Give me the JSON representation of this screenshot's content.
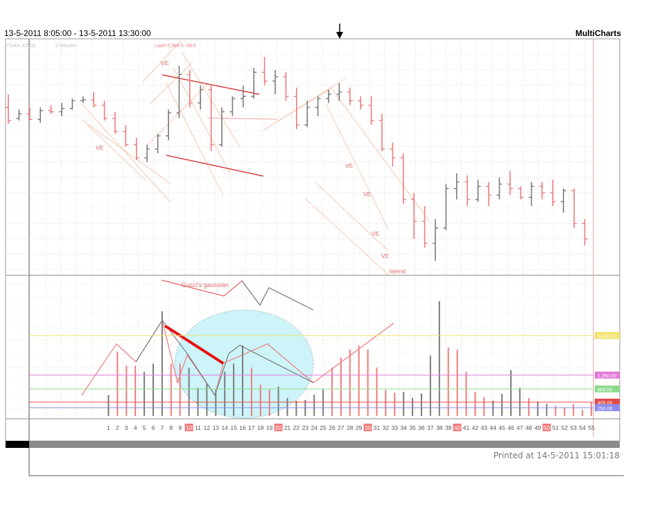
{
  "header": {
    "date_range": "13-5-2011 8:05:00 - 13-5-2011 13:30:00",
    "brand": "MultiCharts"
  },
  "footer": {
    "printed": "Printed at 14-5-2011 15:01:18"
  },
  "colors": {
    "bull": "#7a7a7a",
    "bear": "#ef7a7a",
    "grid": "#d9d9d9",
    "bubble": "#ccf4f9",
    "accent_red": "#e81010"
  },
  "chart_data": [
    {
      "type": "line",
      "title": "",
      "symbol_label": "FDAX JUN11",
      "interval_label": "5 Minutes",
      "last_label": "Last=7,384.5 -58.0",
      "series": [
        {
          "values_open_high_low_close": [
            [
              7420,
              7432,
              7405,
              7408
            ],
            [
              7410,
              7418,
              7408,
              7414
            ],
            [
              7414,
              7420,
              7408,
              7409
            ],
            [
              7409,
              7420,
              7406,
              7417
            ],
            [
              7417,
              7422,
              7414,
              7416
            ],
            [
              7416,
              7424,
              7412,
              7419
            ],
            [
              7419,
              7428,
              7418,
              7426
            ],
            [
              7426,
              7430,
              7424,
              7427
            ],
            [
              7427,
              7434,
              7420,
              7422
            ],
            [
              7422,
              7426,
              7408,
              7410
            ],
            [
              7410,
              7416,
              7396,
              7398
            ],
            [
              7398,
              7404,
              7384,
              7386
            ],
            [
              7386,
              7392,
              7372,
              7374
            ],
            [
              7374,
              7386,
              7370,
              7382
            ],
            [
              7382,
              7396,
              7378,
              7394
            ],
            [
              7394,
              7418,
              7390,
              7415
            ],
            [
              7415,
              7458,
              7410,
              7450
            ],
            [
              7450,
              7454,
              7420,
              7424
            ],
            [
              7424,
              7440,
              7418,
              7436
            ],
            [
              7436,
              7440,
              7380,
              7386
            ],
            [
              7386,
              7420,
              7384,
              7416
            ],
            [
              7416,
              7430,
              7412,
              7428
            ],
            [
              7428,
              7440,
              7420,
              7430
            ],
            [
              7430,
              7456,
              7428,
              7452
            ],
            [
              7452,
              7466,
              7440,
              7444
            ],
            [
              7444,
              7454,
              7432,
              7448
            ],
            [
              7448,
              7452,
              7426,
              7430
            ],
            [
              7430,
              7438,
              7400,
              7404
            ],
            [
              7404,
              7426,
              7402,
              7420
            ],
            [
              7420,
              7430,
              7412,
              7428
            ],
            [
              7428,
              7436,
              7424,
              7432
            ],
            [
              7432,
              7442,
              7426,
              7434
            ],
            [
              7434,
              7438,
              7422,
              7426
            ],
            [
              7426,
              7430,
              7418,
              7422
            ],
            [
              7422,
              7430,
              7404,
              7408
            ],
            [
              7408,
              7414,
              7380,
              7382
            ],
            [
              7382,
              7388,
              7366,
              7374
            ],
            [
              7374,
              7378,
              7332,
              7336
            ],
            [
              7336,
              7342,
              7300,
              7316
            ],
            [
              7316,
              7330,
              7292,
              7296
            ],
            [
              7296,
              7318,
              7280,
              7310
            ],
            [
              7310,
              7350,
              7308,
              7346
            ],
            [
              7346,
              7360,
              7336,
              7352
            ],
            [
              7352,
              7358,
              7330,
              7336
            ],
            [
              7336,
              7354,
              7334,
              7348
            ],
            [
              7348,
              7352,
              7330,
              7340
            ],
            [
              7340,
              7356,
              7336,
              7350
            ],
            [
              7350,
              7362,
              7340,
              7346
            ],
            [
              7346,
              7348,
              7336,
              7338
            ],
            [
              7338,
              7352,
              7330,
              7348
            ],
            [
              7348,
              7352,
              7336,
              7342
            ],
            [
              7342,
              7354,
              7330,
              7334
            ],
            [
              7334,
              7346,
              7324,
              7344
            ],
            [
              7344,
              7346,
              7310,
              7314
            ],
            [
              7314,
              7318,
              7294,
              7300
            ]
          ]
        }
      ],
      "annotations": [
        "VE",
        "VE",
        "VE",
        "VE",
        "VE",
        "VE",
        "lateral"
      ]
    },
    {
      "type": "bar",
      "title": "",
      "x": [
        1,
        2,
        3,
        4,
        5,
        6,
        7,
        8,
        9,
        10,
        11,
        12,
        13,
        14,
        15,
        16,
        17,
        18,
        19,
        20,
        21,
        22,
        23,
        24,
        25,
        26,
        27,
        28,
        29,
        30,
        31,
        32,
        33,
        34,
        35,
        36,
        37,
        38,
        39,
        40,
        41,
        42,
        43,
        44,
        45,
        46,
        47,
        48,
        49,
        50,
        51,
        52,
        53,
        54,
        55
      ],
      "highlighted_x": [
        10,
        20,
        30,
        40,
        50
      ],
      "values": [
        520,
        1600,
        1250,
        1250,
        1100,
        1300,
        2600,
        1300,
        1300,
        1200,
        700,
        800,
        650,
        1100,
        1300,
        1750,
        1200,
        780,
        650,
        730,
        450,
        380,
        400,
        530,
        660,
        1200,
        1450,
        1650,
        1750,
        1650,
        1200,
        650,
        580,
        600,
        450,
        560,
        1500,
        2850,
        1700,
        1650,
        1100,
        600,
        470,
        380,
        550,
        1140,
        700,
        450,
        360,
        300,
        250,
        200,
        300,
        150,
        350
      ],
      "direction": [
        "up",
        "down",
        "down",
        "down",
        "up",
        "up",
        "up",
        "down",
        "down",
        "up",
        "up",
        "up",
        "up",
        "up",
        "up",
        "up",
        "down",
        "down",
        "down",
        "up",
        "up",
        "up",
        "up",
        "up",
        "up",
        "down",
        "down",
        "down",
        "down",
        "down",
        "down",
        "down",
        "down",
        "up",
        "up",
        "up",
        "up",
        "up",
        "down",
        "down",
        "down",
        "down",
        "down",
        "up",
        "up",
        "up",
        "up",
        "down",
        "up",
        "up",
        "down",
        "down",
        "down",
        "down",
        "down"
      ],
      "reference_levels": [
        {
          "label": "5,000.00",
          "color": "#f2e36a"
        },
        {
          "label": "1,250.00",
          "color": "#e27ad9"
        },
        {
          "label": "800.00",
          "color": "#8edb8e"
        },
        {
          "label": "400.00",
          "color": "#e24b4b"
        },
        {
          "label": "250.00",
          "color": "#8b8bee"
        }
      ],
      "annotations": [
        "Gucci's gaussian"
      ]
    }
  ]
}
